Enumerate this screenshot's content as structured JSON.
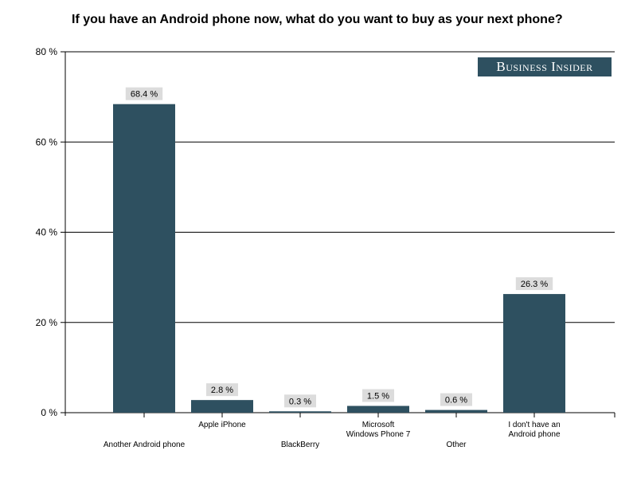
{
  "chart_data": {
    "type": "bar",
    "title": "If you have an Android phone now, what do you want to buy as your next phone?",
    "categories": [
      [
        "Another Android phone"
      ],
      [
        "Apple iPhone"
      ],
      [
        "BlackBerry"
      ],
      [
        "Microsoft",
        "Windows Phone 7"
      ],
      [
        "Other"
      ],
      [
        "I don't have an",
        "Android phone"
      ]
    ],
    "values": [
      68.4,
      2.8,
      0.3,
      1.5,
      0.6,
      26.3
    ],
    "value_labels": [
      "68.4 %",
      "2.8 %",
      "0.3 %",
      "1.5 %",
      "0.6 %",
      "26.3 %"
    ],
    "ylim": [
      0,
      80
    ],
    "yticks": [
      0,
      20,
      40,
      60,
      80
    ],
    "ytick_labels": [
      "0 %",
      "20 %",
      "40 %",
      "60 %",
      "80 %"
    ],
    "grid": true,
    "bar_color": "#2e5060"
  },
  "watermark": "Business Insider"
}
